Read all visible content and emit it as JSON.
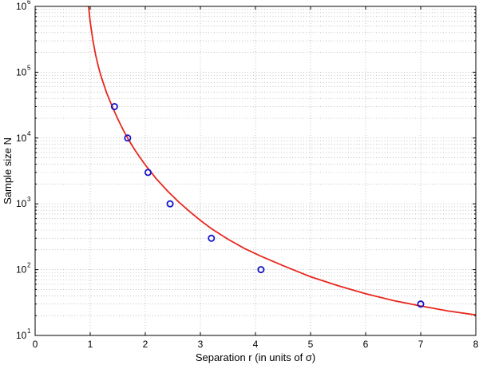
{
  "chart_data": {
    "type": "line",
    "xlabel": "Separation  r  (in units of σ)",
    "ylabel": "Sample size  N",
    "xlim": [
      0,
      8
    ],
    "ylim": [
      10,
      1000000
    ],
    "yscale": "log",
    "grid": true,
    "grid_style": "dotted",
    "minor_grid": true,
    "x_ticks": [
      0,
      1,
      2,
      3,
      4,
      5,
      6,
      7,
      8
    ],
    "x_tick_labels": [
      "0",
      "1",
      "2",
      "3",
      "4",
      "5",
      "6",
      "7",
      "8"
    ],
    "y_ticks": [
      {
        "value": 10,
        "base": "10",
        "exp": "1"
      },
      {
        "value": 100,
        "base": "10",
        "exp": "2"
      },
      {
        "value": 1000,
        "base": "10",
        "exp": "3"
      },
      {
        "value": 10000,
        "base": "10",
        "exp": "4"
      },
      {
        "value": 100000,
        "base": "10",
        "exp": "5"
      },
      {
        "value": 1000000,
        "base": "10",
        "exp": "6"
      }
    ],
    "series": [
      {
        "style": "line",
        "color": "#e8281e",
        "x": [
          0.97,
          1.0,
          1.05,
          1.1,
          1.15,
          1.2,
          1.3,
          1.4,
          1.5,
          1.6,
          1.7,
          1.8,
          1.9,
          2.0,
          2.2,
          2.4,
          2.6,
          2.8,
          3.0,
          3.2,
          3.5,
          3.8,
          4.1,
          4.5,
          5.0,
          5.5,
          6.0,
          6.5,
          7.0,
          7.5,
          8.0
        ],
        "y": [
          1000000,
          580000,
          300000,
          180000,
          120000,
          85000,
          48000,
          30000,
          19500,
          13200,
          9300,
          6800,
          5100,
          3900,
          2400,
          1580,
          1080,
          770,
          560,
          420,
          290,
          210,
          160,
          115,
          78,
          57,
          43,
          34,
          28,
          23.5,
          20.5
        ]
      },
      {
        "style": "markers",
        "marker": "circle",
        "color": "#1414c8",
        "x": [
          1.44,
          1.68,
          2.05,
          2.45,
          3.2,
          4.1,
          7.0
        ],
        "y": [
          30000,
          10000,
          3000,
          1000,
          300,
          100,
          30
        ]
      }
    ]
  }
}
